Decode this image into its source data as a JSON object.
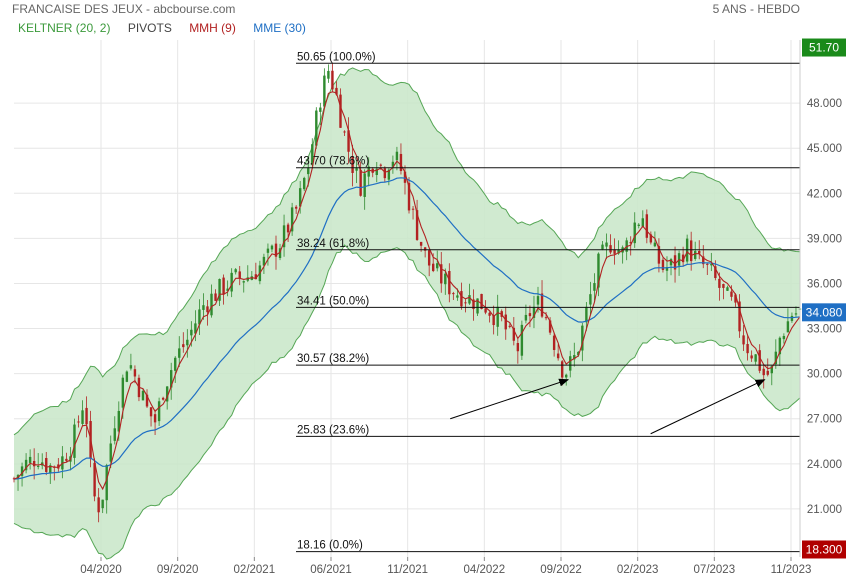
{
  "header": {
    "title": "FRANCAISE DES JEUX - abcbourse.com",
    "period": "5 ANS - HEBDO"
  },
  "legend": [
    {
      "label": "KELTNER (20, 2)",
      "color": "#3c9a3c"
    },
    {
      "label": "PIVOTS",
      "color": "#444444"
    },
    {
      "label": "MMH (9)",
      "color": "#b22222"
    },
    {
      "label": "MME (30)",
      "color": "#1f6fc4"
    }
  ],
  "chart_data": {
    "type": "candlestick",
    "x_tick_labels": [
      "04/2020",
      "09/2020",
      "02/2021",
      "06/2021",
      "11/2021",
      "04/2022",
      "09/2022",
      "02/2023",
      "07/2023",
      "11/2023"
    ],
    "y_ticks": [
      21.0,
      24.0,
      27.0,
      30.0,
      33.0,
      36.0,
      39.0,
      42.0,
      45.0,
      48.0
    ],
    "y_tick_labels": [
      "21.000",
      "24.000",
      "27.000",
      "30.000",
      "33.000",
      "36.000",
      "39.000",
      "42.000",
      "45.000",
      "48.000"
    ],
    "ylim": [
      17.8,
      52.2
    ],
    "fibonacci_levels": [
      {
        "value": 50.65,
        "label": "50.65",
        "pct": "(100.0%)"
      },
      {
        "value": 43.7,
        "label": "43.70",
        "pct": "(78.6%)"
      },
      {
        "value": 38.24,
        "label": "38.24",
        "pct": "(61.8%)"
      },
      {
        "value": 34.41,
        "label": "34.41",
        "pct": "(50.0%)"
      },
      {
        "value": 30.57,
        "label": "30.57",
        "pct": "(38.2%)"
      },
      {
        "value": 25.83,
        "label": "25.83",
        "pct": "(23.6%)"
      },
      {
        "value": 18.16,
        "label": "18.16",
        "pct": "(0.0%)"
      }
    ],
    "badges": [
      {
        "value": 51.7,
        "label": "51.70",
        "color": "#1a8a1a"
      },
      {
        "value": 34.08,
        "label": "34.080",
        "color": "#1f6fc4"
      },
      {
        "value": 18.3,
        "label": "18.300",
        "color": "#b00000"
      }
    ],
    "trend_arrows": [
      {
        "from_x": 0.555,
        "from_y": 27.0,
        "to_x": 0.705,
        "to_y": 29.6
      },
      {
        "from_x": 0.81,
        "from_y": 26.0,
        "to_x": 0.955,
        "to_y": 29.6
      }
    ],
    "price_path": [
      [
        0.0,
        23.0
      ],
      [
        0.015,
        24.0
      ],
      [
        0.03,
        24.5
      ],
      [
        0.045,
        23.8
      ],
      [
        0.06,
        24.2
      ],
      [
        0.075,
        25.5
      ],
      [
        0.09,
        28.5
      ],
      [
        0.1,
        22.0
      ],
      [
        0.11,
        21.0
      ],
      [
        0.12,
        24.5
      ],
      [
        0.13,
        27.5
      ],
      [
        0.145,
        31.0
      ],
      [
        0.16,
        29.0
      ],
      [
        0.17,
        27.5
      ],
      [
        0.18,
        26.8
      ],
      [
        0.19,
        29.0
      ],
      [
        0.205,
        31.0
      ],
      [
        0.22,
        32.2
      ],
      [
        0.24,
        34.5
      ],
      [
        0.26,
        35.5
      ],
      [
        0.28,
        36.3
      ],
      [
        0.3,
        36.5
      ],
      [
        0.32,
        37.5
      ],
      [
        0.34,
        38.8
      ],
      [
        0.36,
        41.0
      ],
      [
        0.375,
        44.0
      ],
      [
        0.39,
        48.5
      ],
      [
        0.4,
        50.2
      ],
      [
        0.41,
        48.5
      ],
      [
        0.42,
        46.0
      ],
      [
        0.43,
        44.0
      ],
      [
        0.44,
        42.5
      ],
      [
        0.45,
        43.5
      ],
      [
        0.46,
        44.5
      ],
      [
        0.47,
        43.5
      ],
      [
        0.48,
        44.5
      ],
      [
        0.49,
        44.0
      ],
      [
        0.5,
        42.0
      ],
      [
        0.51,
        40.0
      ],
      [
        0.525,
        37.5
      ],
      [
        0.54,
        36.5
      ],
      [
        0.56,
        35.5
      ],
      [
        0.58,
        35.0
      ],
      [
        0.6,
        34.5
      ],
      [
        0.62,
        33.5
      ],
      [
        0.64,
        31.5
      ],
      [
        0.655,
        34.0
      ],
      [
        0.67,
        34.8
      ],
      [
        0.685,
        32.5
      ],
      [
        0.7,
        30.0
      ],
      [
        0.715,
        31.2
      ],
      [
        0.73,
        34.5
      ],
      [
        0.745,
        37.5
      ],
      [
        0.76,
        38.8
      ],
      [
        0.775,
        38.0
      ],
      [
        0.79,
        40.0
      ],
      [
        0.8,
        40.5
      ],
      [
        0.81,
        38.5
      ],
      [
        0.825,
        37.0
      ],
      [
        0.84,
        37.2
      ],
      [
        0.855,
        38.5
      ],
      [
        0.87,
        37.5
      ],
      [
        0.885,
        36.8
      ],
      [
        0.9,
        35.5
      ],
      [
        0.915,
        34.5
      ],
      [
        0.93,
        32.0
      ],
      [
        0.945,
        31.0
      ],
      [
        0.955,
        29.8
      ],
      [
        0.965,
        30.2
      ],
      [
        0.975,
        32.5
      ],
      [
        0.99,
        34.0
      ],
      [
        1.0,
        34.1
      ]
    ]
  }
}
